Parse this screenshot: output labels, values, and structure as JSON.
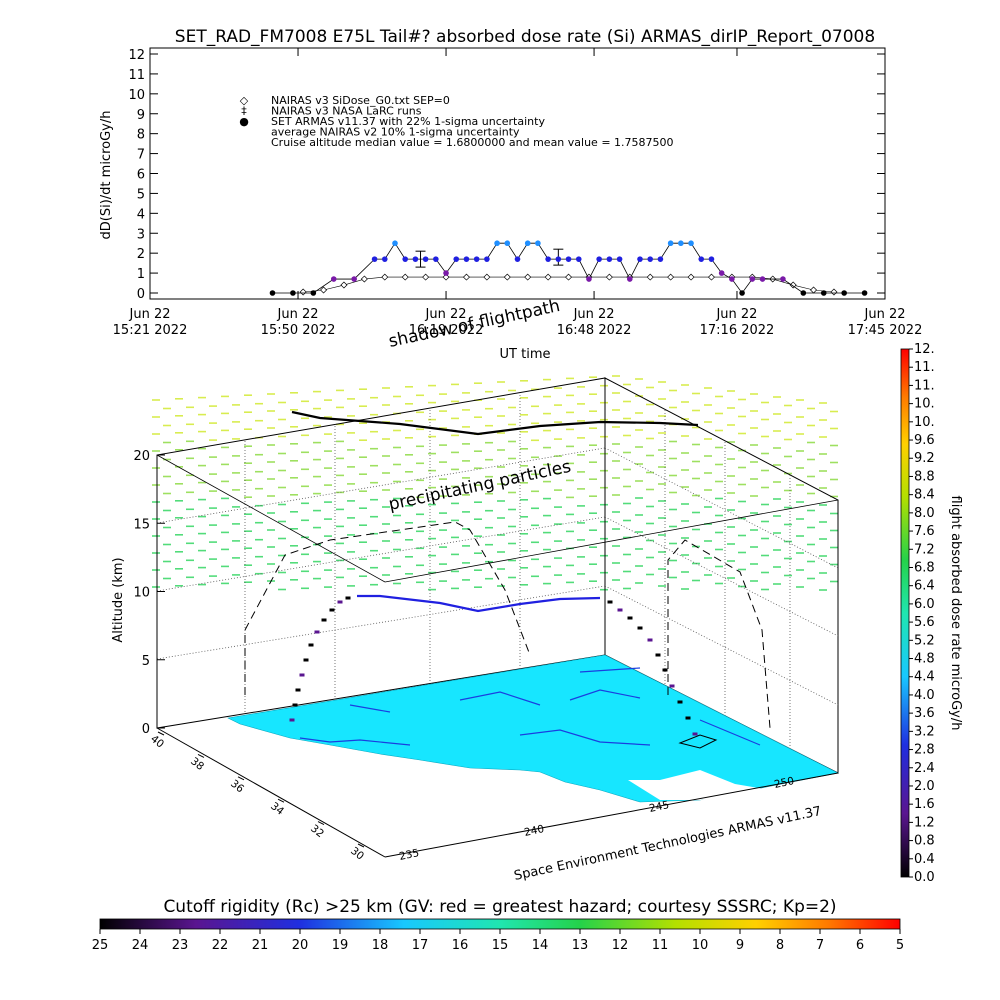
{
  "chart_data": [
    {
      "type": "scatter",
      "title": "SET_RAD_FM7008  E75L Tail#? absorbed dose rate (Si) ARMAS_dirIP_Report_07008",
      "ylabel": "dD(Si)/dt microGy/h",
      "xlabel": "UT time",
      "ylim": [
        0,
        12
      ],
      "yticks": [
        "0",
        "1",
        "2",
        "3",
        "4",
        "5",
        "6",
        "7",
        "8",
        "9",
        "10",
        "11",
        "12"
      ],
      "xticks": [
        {
          "line1": "Jun 22",
          "line2": "15:21 2022",
          "min": 0
        },
        {
          "line1": "Jun 22",
          "line2": "15:50 2022",
          "min": 29
        },
        {
          "line1": "Jun 22",
          "line2": "16:19 2022",
          "min": 58
        },
        {
          "line1": "Jun 22",
          "line2": "16:48 2022",
          "min": 87
        },
        {
          "line1": "Jun 22",
          "line2": "17:16 2022",
          "min": 115
        },
        {
          "line1": "Jun 22",
          "line2": "17:45 2022",
          "min": 144
        }
      ],
      "xlim_min": [
        0,
        144
      ],
      "legend": [
        {
          "symbol": "◇",
          "text": "NAIRAS v3 SiDose_G0.txt SEP=0"
        },
        {
          "symbol": "‡",
          "text": "NAIRAS v3 NASA LaRC runs"
        },
        {
          "symbol": "●",
          "text": "SET ARMAS v11.37 with 22% 1-sigma uncertainty"
        },
        {
          "symbol": "",
          "text": "average NAIRAS v2 10% 1-sigma uncertainty"
        },
        {
          "symbol": "",
          "text": "Cruise altitude median value =     1.6800000 and mean value =      1.7587500"
        }
      ],
      "legend_placement": "top-left",
      "series": [
        {
          "name": "NAIRAS v3 SiDose_G0.txt SEP=0",
          "x": [
            30,
            34,
            38,
            42,
            46,
            50,
            54,
            58,
            62,
            66,
            70,
            74,
            78,
            82,
            86,
            90,
            94,
            98,
            102,
            106,
            110,
            114,
            118,
            122,
            126,
            130,
            134
          ],
          "y": [
            0.05,
            0.15,
            0.4,
            0.7,
            0.8,
            0.8,
            0.8,
            0.8,
            0.8,
            0.8,
            0.8,
            0.8,
            0.8,
            0.8,
            0.8,
            0.8,
            0.8,
            0.8,
            0.8,
            0.8,
            0.8,
            0.8,
            0.8,
            0.7,
            0.4,
            0.15,
            0.05
          ]
        },
        {
          "name": "NAIRAS v3 NASA LaRC runs",
          "x": [
            53,
            80
          ],
          "y": [
            1.7,
            1.8
          ],
          "err": [
            0.4,
            0.4
          ]
        },
        {
          "name": "SET ARMAS v11.37 with 22% 1-sigma uncertainty",
          "x": [
            24,
            28,
            32,
            36,
            40,
            44,
            46,
            48,
            50,
            52,
            54,
            56,
            58,
            60,
            62,
            64,
            66,
            68,
            70,
            72,
            74,
            76,
            78,
            80,
            82,
            84,
            86,
            88,
            90,
            92,
            94,
            96,
            98,
            100,
            102,
            104,
            106,
            108,
            110,
            112,
            114,
            116,
            118,
            120,
            124,
            128,
            132,
            136,
            140
          ],
          "y": [
            0,
            0,
            0,
            0.7,
            0.7,
            1.7,
            1.7,
            2.5,
            1.7,
            1.7,
            1.7,
            1.7,
            1.0,
            1.7,
            1.7,
            1.7,
            1.7,
            2.5,
            2.5,
            1.7,
            2.5,
            2.5,
            1.7,
            1.7,
            1.7,
            1.7,
            0.7,
            1.7,
            1.7,
            1.7,
            0.7,
            1.7,
            1.7,
            1.7,
            2.5,
            2.5,
            2.5,
            1.7,
            1.7,
            1.0,
            0.7,
            0,
            0.7,
            0.7,
            0.7,
            0,
            0,
            0,
            0
          ]
        }
      ]
    },
    {
      "type": "scatter",
      "title": "",
      "zlabel": "Altitude (km)",
      "zticks": [
        "0",
        "5",
        "10",
        "15",
        "20"
      ],
      "lat_ticks": [
        "30",
        "32",
        "34",
        "36",
        "38",
        "40"
      ],
      "lon_ticks": [
        "235",
        "240",
        "245",
        "250"
      ],
      "annotations": [
        "shadow of flightpath",
        "precipitating particles"
      ],
      "footer": "Space Environment Technologies ARMAS v11.37",
      "flight_altitude_km": [
        0,
        3,
        6,
        8,
        10.3,
        10.3,
        9.0,
        9.8,
        10.0,
        8,
        5,
        1.5,
        0
      ],
      "zlim": [
        0,
        20
      ]
    }
  ],
  "colorbar_right": {
    "label": "flight absorbed dose rate microGy/h",
    "ticks": [
      "0.0",
      "0.4",
      "0.8",
      "1.2",
      "1.6",
      "2.0",
      "2.4",
      "2.8",
      "3.2",
      "3.6",
      "4.0",
      "4.4",
      "4.8",
      "5.2",
      "5.6",
      "6.0",
      "6.4",
      "6.8",
      "7.2",
      "7.6",
      "8.0",
      "8.4",
      "8.8",
      "9.2",
      "9.6",
      "10.",
      "10.",
      "11.",
      "11.",
      "12."
    ]
  },
  "colorbar_bottom": {
    "label": "Cutoff rigidity (Rc) >25 km (GV: red = greatest hazard; courtesy SSSRC; Kp=2)",
    "ticks": [
      "25",
      "24",
      "23",
      "22",
      "21",
      "20",
      "19",
      "18",
      "17",
      "16",
      "15",
      "14",
      "13",
      "12",
      "11",
      "10",
      "9",
      "8",
      "7",
      "6",
      "5"
    ]
  },
  "colors": {
    "armas_blue": "#2020e0",
    "armas_light": "#1f8fff",
    "armas_purple": "#7a1aa8",
    "map_cyan": "#17e6ff",
    "particle_green": "#7de06a"
  }
}
